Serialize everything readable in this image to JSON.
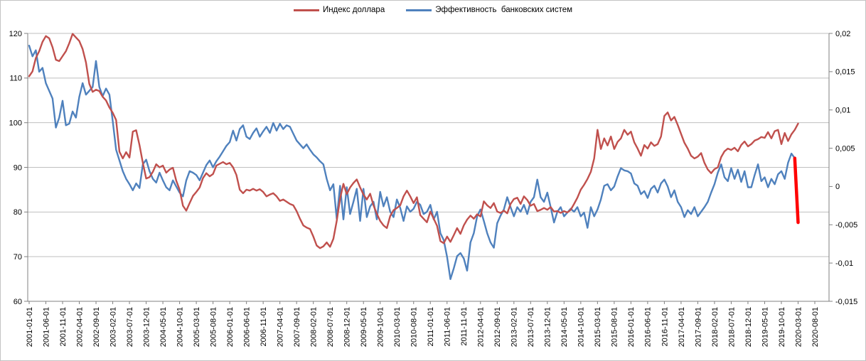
{
  "legend": [
    {
      "label": "Индекс доллара",
      "color": "#C0504D"
    },
    {
      "label": "Эффективность  банковских систем",
      "color": "#4F81BD"
    }
  ],
  "chart_data": {
    "type": "line",
    "title": "",
    "xlabel": "",
    "ylabel_left": "",
    "ylabel_right": "",
    "grid": "horizontal",
    "legend_position": "top-center",
    "x_unit": "months, 2001-01 .. 2020-08",
    "x_tick_labels": [
      "2001-01-01",
      "2001-06-01",
      "2001-11-01",
      "2002-04-01",
      "2002-09-01",
      "2003-02-01",
      "2003-07-01",
      "2003-12-01",
      "2004-05-01",
      "2004-10-01",
      "2005-03-01",
      "2005-08-01",
      "2006-01-01",
      "2006-06-01",
      "2006-11-01",
      "2007-04-01",
      "2007-09-01",
      "2008-02-01",
      "2008-07-01",
      "2008-12-01",
      "2009-05-01",
      "2009-10-01",
      "2010-03-01",
      "2010-08-01",
      "2011-01-01",
      "2011-06-01",
      "2011-11-01",
      "2012-04-01",
      "2012-09-01",
      "2013-02-01",
      "2013-07-01",
      "2013-12-01",
      "2014-05-01",
      "2014-10-01",
      "2015-03-01",
      "2015-08-01",
      "2016-01-01",
      "2016-06-01",
      "2016-11-01",
      "2017-04-01",
      "2017-09-01",
      "2018-02-01",
      "2018-07-01",
      "2018-12-01",
      "2019-05-01",
      "2019-10-01",
      "2020-03-01",
      "2020-08-01"
    ],
    "x_tick_step_months": 5,
    "y_left_axis": {
      "min": 60,
      "max": 120,
      "tick_labels": [
        "120",
        "110",
        "100",
        "90",
        "80",
        "70",
        "60"
      ]
    },
    "y_right_axis": {
      "min": -0.015,
      "max": 0.02,
      "tick_labels": [
        "0,02",
        "0,015",
        "0,01",
        "0,005",
        "0",
        "-0,005",
        "-0,01",
        "-0,015"
      ]
    },
    "series": [
      {
        "name": "Индекс доллара",
        "axis": "left",
        "color": "#C0504D",
        "stroke_width": 2.4,
        "in_legend": true,
        "start_month": "2001-01",
        "monthly_values": [
          110.4,
          111.5,
          114.5,
          116,
          118.1,
          119.4,
          118.9,
          116.9,
          114.1,
          113.8,
          114.9,
          116,
          117.8,
          119.9,
          119.1,
          118.3,
          116.5,
          113.5,
          108.7,
          106.9,
          107.4,
          107.1,
          105.8,
          105,
          103.4,
          102.2,
          100.6,
          93.5,
          92,
          93.4,
          92.2,
          98,
          98.3,
          95,
          91,
          87.5,
          87.8,
          89,
          90.7,
          90,
          90.4,
          88.8,
          89.5,
          89.9,
          87,
          85,
          81.4,
          80.3,
          82,
          83.6,
          84.5,
          85.5,
          87.6,
          88.7,
          88,
          88.5,
          90.4,
          90.8,
          91.2,
          90.7,
          91,
          90,
          88.3,
          85,
          84.2,
          85,
          84.8,
          85.2,
          84.8,
          85.1,
          84.5,
          83.5,
          83.9,
          84.2,
          83.5,
          82.5,
          82.8,
          82.3,
          81.8,
          81.5,
          80.2,
          78.5,
          77,
          76.5,
          76.2,
          74.5,
          72.5,
          71.9,
          72.3,
          73.2,
          72.2,
          74,
          78,
          83,
          86.3,
          84,
          85.5,
          86.5,
          87.3,
          85.5,
          83.9,
          82.8,
          84.1,
          81.5,
          79.6,
          78,
          77,
          76.4,
          79.1,
          80.4,
          80.9,
          81.5,
          83.5,
          84.8,
          83.5,
          82,
          83.3,
          79.3,
          78.5,
          77.7,
          80.1,
          78.5,
          76.9,
          73.5,
          73,
          74.5,
          73.3,
          74.8,
          76.4,
          75.1,
          77,
          78.3,
          79.2,
          78.5,
          79.5,
          79,
          82.4,
          81.5,
          80.9,
          82,
          80.1,
          79.8,
          80.3,
          79.7,
          81.8,
          82.9,
          83.2,
          81.8,
          83.5,
          82.7,
          81.4,
          81.8,
          80.2,
          80.5,
          80.9,
          80.5,
          81.1,
          80.1,
          80.2,
          79.8,
          80.2,
          79.9,
          80.5,
          81.8,
          83.2,
          85,
          86.1,
          87.4,
          89,
          92,
          98.4,
          94.1,
          96.5,
          94.9,
          96.9,
          94.1,
          95.7,
          96.5,
          98.4,
          97.3,
          98,
          95.6,
          94.2,
          92.6,
          95,
          94.2,
          95.6,
          94.8,
          95.2,
          96.9,
          101.5,
          102.3,
          100.5,
          101.3,
          99.5,
          97.5,
          95.5,
          94.2,
          92.6,
          92,
          92.4,
          93.2,
          91,
          89.5,
          88.7,
          89.6,
          90,
          92.3,
          93.6,
          94.2,
          93.9,
          94.4,
          93.6,
          95,
          95.8,
          94.7,
          95.2,
          96,
          96.3,
          96.8,
          96.6,
          97.9,
          96.5,
          98.1,
          98.4,
          95.2,
          97.7,
          95.9,
          97.4,
          98.4,
          99.8
        ]
      },
      {
        "name": "Эффективность  банковских систем",
        "axis": "right",
        "color": "#4F81BD",
        "stroke_width": 2.4,
        "in_legend": true,
        "start_month": "2001-01",
        "monthly_values": [
          0.0184,
          0.017,
          0.0178,
          0.015,
          0.0155,
          0.0135,
          0.0125,
          0.0115,
          0.0077,
          0.009,
          0.0112,
          0.008,
          0.0082,
          0.0098,
          0.009,
          0.0117,
          0.0135,
          0.012,
          0.0125,
          0.013,
          0.0164,
          0.013,
          0.0118,
          0.0128,
          0.012,
          0.0085,
          0.0048,
          0.0034,
          0.002,
          0.001,
          0.0003,
          -0.0005,
          0.0004,
          -0.0002,
          0.0029,
          0.0035,
          0.002,
          0.001,
          0.0005,
          0.0018,
          0.0008,
          -0.0001,
          -0.0005,
          0.0008,
          0,
          -0.0008,
          -0.0013,
          0.0008,
          0.002,
          0.0018,
          0.0015,
          0.0008,
          0.0018,
          0.0028,
          0.0034,
          0.0025,
          0.0033,
          0.0039,
          0.0046,
          0.0053,
          0.0058,
          0.0073,
          0.006,
          0.0075,
          0.008,
          0.0065,
          0.0062,
          0.007,
          0.0076,
          0.0065,
          0.0072,
          0.0078,
          0.007,
          0.0083,
          0.0073,
          0.0082,
          0.0075,
          0.008,
          0.0078,
          0.0069,
          0.006,
          0.0055,
          0.005,
          0.0055,
          0.0048,
          0.0042,
          0.0038,
          0.0033,
          0.0029,
          0.001,
          -0.0005,
          0.0003,
          -0.0042,
          0.0001,
          -0.0043,
          -0.0001,
          -0.0036,
          -0.002,
          -0.0003,
          -0.0045,
          -0.0003,
          -0.004,
          -0.0026,
          -0.002,
          -0.0043,
          -0.0007,
          -0.0026,
          -0.0014,
          -0.0033,
          -0.004,
          -0.0017,
          -0.0028,
          -0.0045,
          -0.0026,
          -0.0033,
          -0.0029,
          -0.002,
          -0.0024,
          -0.0036,
          -0.0033,
          -0.0024,
          -0.0043,
          -0.0033,
          -0.0061,
          -0.007,
          -0.0092,
          -0.0121,
          -0.0107,
          -0.0091,
          -0.0087,
          -0.0094,
          -0.011,
          -0.0073,
          -0.0061,
          -0.0039,
          -0.003,
          -0.0045,
          -0.0061,
          -0.0073,
          -0.008,
          -0.0048,
          -0.0038,
          -0.003,
          -0.0014,
          -0.0027,
          -0.0039,
          -0.0027,
          -0.0033,
          -0.0024,
          -0.0036,
          -0.002,
          -0.0014,
          0.0009,
          -0.0014,
          -0.002,
          -0.0008,
          -0.0027,
          -0.0047,
          -0.0033,
          -0.0027,
          -0.0039,
          -0.0034,
          -0.0029,
          -0.0033,
          -0.0027,
          -0.0039,
          -0.0034,
          -0.0054,
          -0.0027,
          -0.0039,
          -0.003,
          -0.0017,
          0.0001,
          0.0003,
          -0.0005,
          0,
          0.0013,
          0.0024,
          0.0021,
          0.002,
          0.0017,
          0.0004,
          0.0001,
          -0.001,
          -0.0006,
          -0.0015,
          -0.0003,
          0.0001,
          -0.0008,
          0.0004,
          0.0009,
          0,
          -0.0014,
          -0.0005,
          -0.002,
          -0.0027,
          -0.004,
          -0.0031,
          -0.0036,
          -0.0027,
          -0.0039,
          -0.0033,
          -0.0027,
          -0.002,
          -0.0008,
          0.0003,
          0.0018,
          0.0029,
          0.0012,
          0.0007,
          0.0024,
          0.001,
          0.0022,
          0.0006,
          0.002,
          -0.0001,
          -0.0001,
          0.0015,
          0.0029,
          0.0007,
          0.0012,
          -0.0001,
          0.001,
          0.0003,
          0.0016,
          0.002,
          0.001,
          0.0031,
          0.0043,
          0.0037
        ]
      },
      {
        "name": "",
        "axis": "right",
        "color": "#FF0000",
        "stroke_width": 4.5,
        "in_legend": false,
        "annotation": true,
        "start_month": "2020-02",
        "monthly_values": [
          0.0037,
          -0.0047
        ]
      }
    ],
    "colors": {
      "gridline": "#BFBFBF",
      "axis_line": "#808080",
      "background": "#FFFFFF",
      "annotation_red": "#FF0000"
    }
  }
}
